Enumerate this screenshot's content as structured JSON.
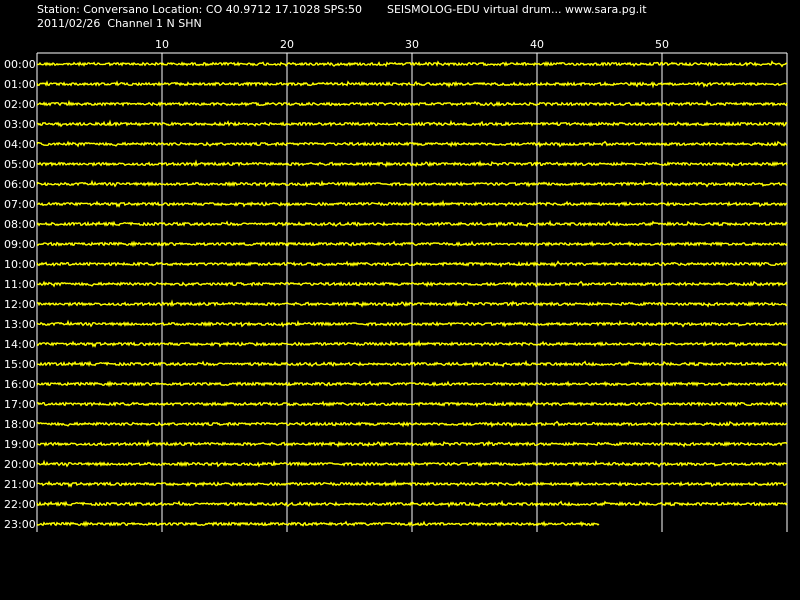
{
  "header": {
    "station_line": "Station: Conversano Location: CO 40.9712 17.1028 SPS:50",
    "date_line": "2011/02/26  Channel 1 N SHN",
    "app_line": "SEISMOLOG-EDU virtual drum... www.sara.pg.it"
  },
  "drum": {
    "minute_ticks": [
      "10",
      "20",
      "30",
      "40",
      "50"
    ],
    "minutes_per_row": 60,
    "last_row_progress_minutes": 45,
    "trace_color": "#ffff00",
    "grid_color": "#ffffff",
    "background_color": "#000000",
    "hours": [
      "00:00",
      "01:00",
      "02:00",
      "03:00",
      "04:00",
      "05:00",
      "06:00",
      "07:00",
      "08:00",
      "09:00",
      "10:00",
      "11:00",
      "12:00",
      "13:00",
      "14:00",
      "15:00",
      "16:00",
      "17:00",
      "18:00",
      "19:00",
      "20:00",
      "21:00",
      "22:00",
      "23:00"
    ]
  }
}
